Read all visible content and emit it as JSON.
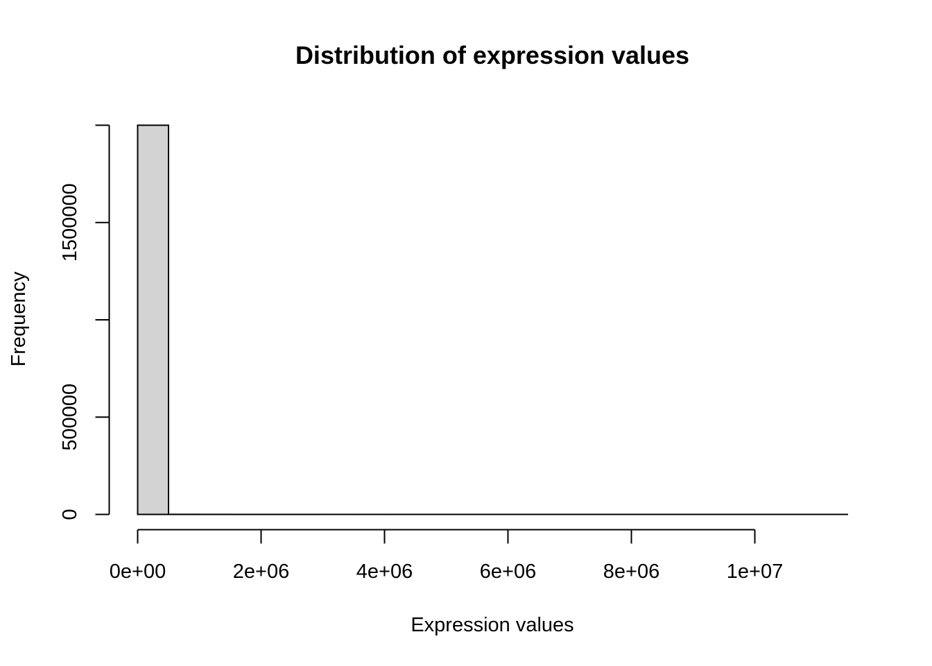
{
  "chart_data": {
    "type": "bar",
    "title": "Distribution of expression values",
    "xlabel": "Expression values",
    "ylabel": "Frequency",
    "bin_width": 500000,
    "bins_start": 0,
    "values": [
      2000000,
      400,
      150,
      80,
      50,
      30,
      20,
      15,
      10,
      8,
      6,
      5,
      4,
      3,
      3,
      2,
      2,
      2,
      1,
      1,
      1,
      1,
      1
    ],
    "xlim": [
      0,
      11500000
    ],
    "ylim": [
      0,
      2000000
    ],
    "x_ticks": [
      0,
      2000000,
      4000000,
      6000000,
      8000000,
      10000000
    ],
    "x_tick_labels": [
      "0e+00",
      "2e+06",
      "4e+06",
      "6e+06",
      "8e+06",
      "1e+07"
    ],
    "y_ticks": [
      0,
      500000,
      1000000,
      1500000,
      2000000
    ],
    "y_tick_labels": [
      "0",
      "500000",
      "",
      "1500000",
      ""
    ],
    "bar_fill": "#d3d3d3",
    "bar_stroke": "#000000",
    "grid": false
  }
}
